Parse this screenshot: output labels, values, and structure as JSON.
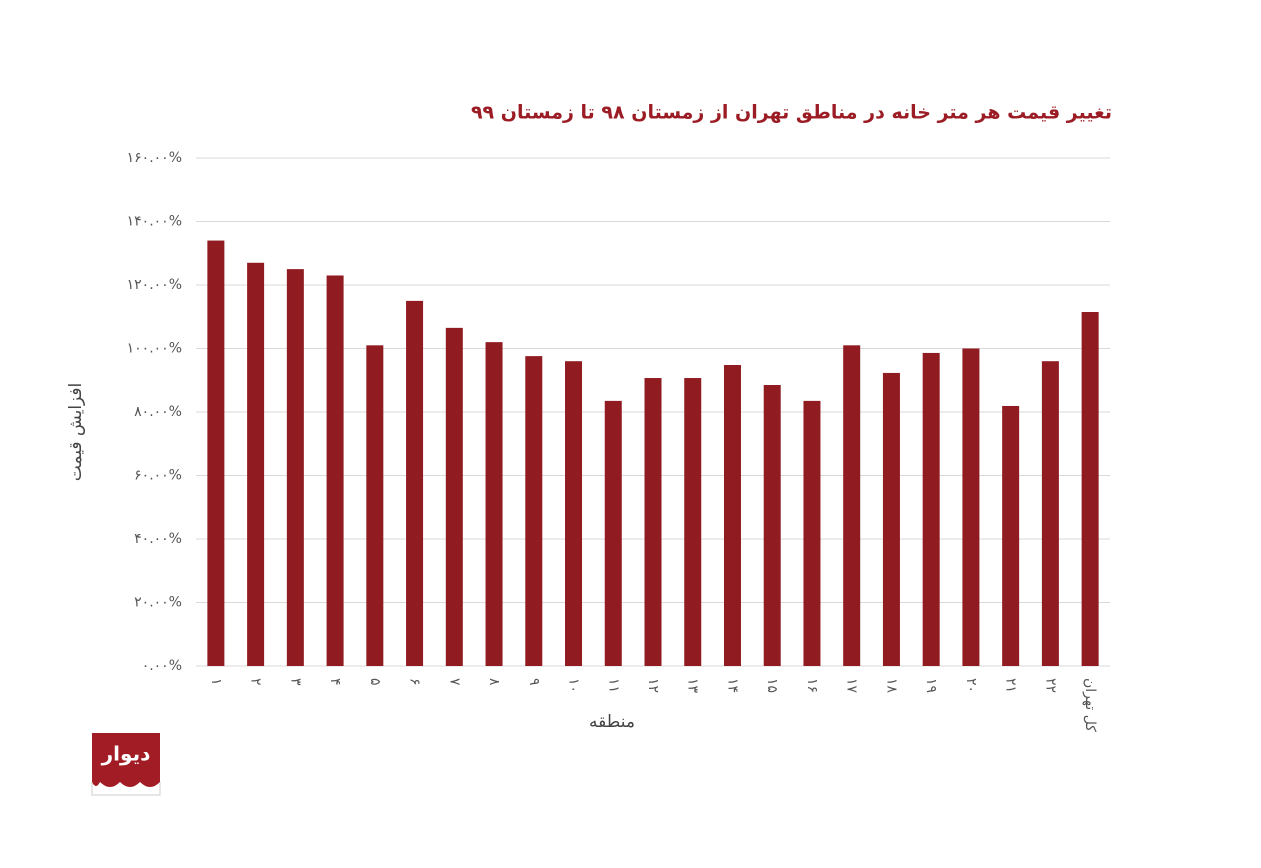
{
  "chart_data": {
    "type": "bar",
    "title": "تغییر قیمت هر متر خانه در مناطق تهران از زمستان ۹۸ تا زمستان ۹۹",
    "y_label": "افزایش قیمت",
    "x_label": "منطقه",
    "logo": "دیوار",
    "categories": [
      "۱",
      "۲",
      "۳",
      "۴",
      "۵",
      "۶",
      "۷",
      "۸",
      "۹",
      "۱۰",
      "۱۱",
      "۱۲",
      "۱۳",
      "۱۴",
      "۱۵",
      "۱۶",
      "۱۷",
      "۱۸",
      "۱۹",
      "۲۰",
      "۲۱",
      "۲۲",
      "کل تهران"
    ],
    "values": [
      134,
      127,
      125,
      123,
      101,
      115,
      106.5,
      102,
      97.6,
      96,
      83.5,
      90.7,
      90.7,
      94.8,
      88.5,
      83.5,
      101,
      92.3,
      98.6,
      100,
      81.9,
      96,
      111.5
    ],
    "color": "#901b20",
    "ylim": [
      0,
      160
    ],
    "yticks": [
      {
        "value": 0,
        "label": "۰.۰۰%"
      },
      {
        "value": 20,
        "label": "۲۰.۰۰%"
      },
      {
        "value": 40,
        "label": "۴۰.۰۰%"
      },
      {
        "value": 60,
        "label": "۶۰.۰۰%"
      },
      {
        "value": 80,
        "label": "۸۰.۰۰%"
      },
      {
        "value": 100,
        "label": "۱۰۰.۰۰%"
      },
      {
        "value": 120,
        "label": "۱۲۰.۰۰%"
      },
      {
        "value": 140,
        "label": "۱۴۰.۰۰%"
      },
      {
        "value": 160,
        "label": "۱۶۰.۰۰%"
      }
    ],
    "grid": true
  }
}
